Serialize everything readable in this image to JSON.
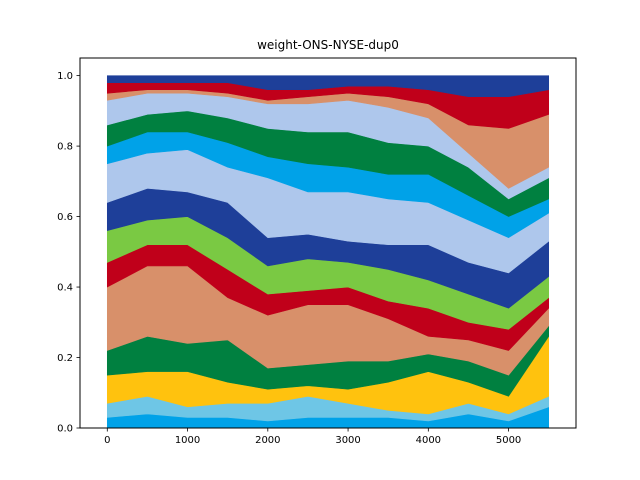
{
  "chart_data": {
    "type": "area",
    "stacked": true,
    "normalized": true,
    "title": "weight-ONS-NYSE-dup0",
    "xlabel": "",
    "ylabel": "",
    "xlim": [
      -340,
      5840
    ],
    "ylim": [
      0.0,
      1.05
    ],
    "x_ticks": [
      0,
      1000,
      2000,
      3000,
      4000,
      5000
    ],
    "y_ticks": [
      0.0,
      0.2,
      0.4,
      0.6,
      0.8,
      1.0
    ],
    "x_tick_labels": [
      "0",
      "1000",
      "2000",
      "3000",
      "4000",
      "5000"
    ],
    "y_tick_labels": [
      "0.0",
      "0.2",
      "0.4",
      "0.6",
      "0.8",
      "1.0"
    ],
    "grid": false,
    "legend": "none",
    "x": [
      0,
      500,
      1000,
      1500,
      2000,
      2500,
      3000,
      3500,
      4000,
      4500,
      5000,
      5500
    ],
    "series": [
      {
        "color": "#00a2e8",
        "values": [
          0.03,
          0.04,
          0.03,
          0.03,
          0.02,
          0.03,
          0.03,
          0.03,
          0.02,
          0.04,
          0.02,
          0.06
        ]
      },
      {
        "color": "#6ec6e6",
        "values": [
          0.04,
          0.05,
          0.03,
          0.04,
          0.05,
          0.06,
          0.04,
          0.02,
          0.02,
          0.03,
          0.02,
          0.03
        ]
      },
      {
        "color": "#ffc20e",
        "values": [
          0.08,
          0.07,
          0.1,
          0.06,
          0.04,
          0.03,
          0.04,
          0.08,
          0.12,
          0.06,
          0.05,
          0.17
        ]
      },
      {
        "color": "#008040",
        "values": [
          0.07,
          0.1,
          0.08,
          0.12,
          0.06,
          0.06,
          0.08,
          0.06,
          0.05,
          0.06,
          0.06,
          0.03
        ]
      },
      {
        "color": "#d8906a",
        "values": [
          0.18,
          0.2,
          0.22,
          0.12,
          0.15,
          0.17,
          0.16,
          0.12,
          0.05,
          0.06,
          0.07,
          0.05
        ]
      },
      {
        "color": "#c0001a",
        "values": [
          0.07,
          0.06,
          0.06,
          0.08,
          0.06,
          0.04,
          0.05,
          0.05,
          0.08,
          0.05,
          0.06,
          0.03
        ]
      },
      {
        "color": "#7ac943",
        "values": [
          0.09,
          0.07,
          0.08,
          0.09,
          0.08,
          0.09,
          0.07,
          0.09,
          0.08,
          0.08,
          0.06,
          0.06
        ]
      },
      {
        "color": "#1e3f99",
        "values": [
          0.08,
          0.09,
          0.07,
          0.1,
          0.08,
          0.07,
          0.06,
          0.07,
          0.1,
          0.09,
          0.1,
          0.1
        ]
      },
      {
        "color": "#aec7ec",
        "values": [
          0.11,
          0.1,
          0.12,
          0.1,
          0.17,
          0.12,
          0.14,
          0.13,
          0.12,
          0.12,
          0.1,
          0.08
        ]
      },
      {
        "color": "#00a2e8",
        "values": [
          0.05,
          0.06,
          0.05,
          0.07,
          0.06,
          0.08,
          0.07,
          0.07,
          0.08,
          0.07,
          0.06,
          0.04
        ]
      },
      {
        "color": "#008040",
        "values": [
          0.06,
          0.05,
          0.06,
          0.07,
          0.08,
          0.09,
          0.1,
          0.09,
          0.08,
          0.08,
          0.05,
          0.06
        ]
      },
      {
        "color": "#aec7ec",
        "values": [
          0.07,
          0.06,
          0.05,
          0.06,
          0.07,
          0.08,
          0.09,
          0.1,
          0.08,
          0.04,
          0.03,
          0.03
        ]
      },
      {
        "color": "#d8906a",
        "values": [
          0.02,
          0.01,
          0.01,
          0.01,
          0.01,
          0.02,
          0.02,
          0.03,
          0.04,
          0.08,
          0.17,
          0.15
        ]
      },
      {
        "color": "#c0001a",
        "values": [
          0.03,
          0.02,
          0.02,
          0.03,
          0.03,
          0.02,
          0.02,
          0.03,
          0.04,
          0.08,
          0.09,
          0.07
        ]
      },
      {
        "color": "#1e3f99",
        "values": [
          0.02,
          0.02,
          0.02,
          0.02,
          0.04,
          0.04,
          0.03,
          0.03,
          0.04,
          0.06,
          0.06,
          0.04
        ]
      }
    ]
  }
}
